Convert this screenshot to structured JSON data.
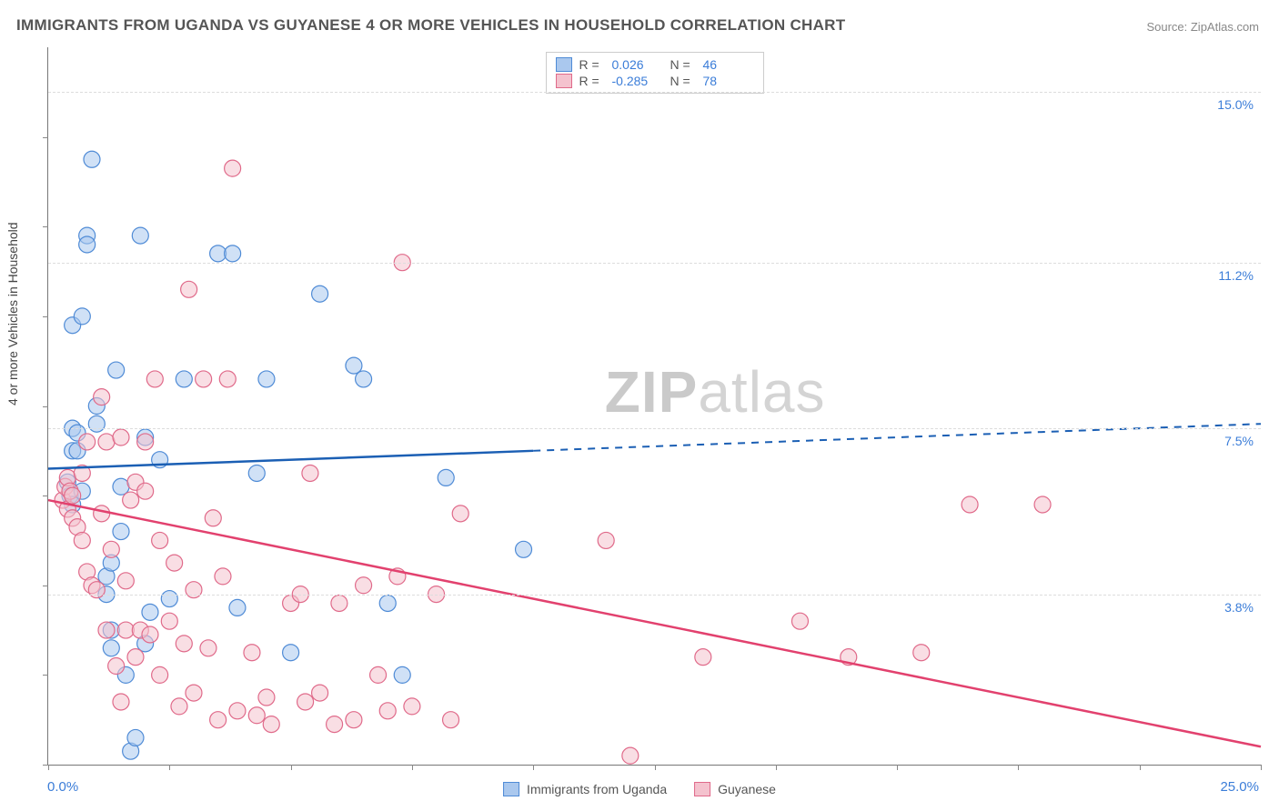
{
  "title": "IMMIGRANTS FROM UGANDA VS GUYANESE 4 OR MORE VEHICLES IN HOUSEHOLD CORRELATION CHART",
  "source": "Source: ZipAtlas.com",
  "watermark_prefix": "ZIP",
  "watermark_suffix": "atlas",
  "y_axis_title": "4 or more Vehicles in Household",
  "xlim": [
    0.0,
    25.0
  ],
  "ylim": [
    0.0,
    16.0
  ],
  "y_gridlines": [
    3.8,
    7.5,
    11.2,
    15.0
  ],
  "y_grid_labels": [
    "3.8%",
    "7.5%",
    "11.2%",
    "15.0%"
  ],
  "x_min_label": "0.0%",
  "x_max_label": "25.0%",
  "x_ticks": [
    0.0,
    2.5,
    5.0,
    7.5,
    10.0,
    12.5,
    15.0,
    17.5,
    20.0,
    22.5,
    25.0
  ],
  "y_ticks": [
    0.0,
    2.0,
    4.0,
    6.0,
    8.0,
    10.0,
    12.0,
    14.0
  ],
  "grid_color": "#dddddd",
  "axis_color": "#777777",
  "background_color": "#ffffff",
  "marker_radius": 9,
  "marker_opacity": 0.55,
  "series": [
    {
      "name": "Immigrants from Uganda",
      "fill": "#aac8ee",
      "stroke": "#4f8bd6",
      "line_color": "#1b5fb4",
      "r_label": "R =",
      "r_value": "0.026",
      "n_label": "N =",
      "n_value": "46",
      "regression": {
        "x1": 0.0,
        "y1": 6.6,
        "x2": 25.0,
        "y2": 7.6,
        "solid_until_x": 10.0
      },
      "points": [
        [
          0.4,
          6.3
        ],
        [
          0.45,
          6.0
        ],
        [
          0.5,
          5.8
        ],
        [
          0.5,
          7.5
        ],
        [
          0.5,
          7.0
        ],
        [
          0.5,
          9.8
        ],
        [
          0.6,
          7.0
        ],
        [
          0.6,
          7.4
        ],
        [
          0.7,
          6.1
        ],
        [
          0.7,
          10.0
        ],
        [
          0.8,
          11.8
        ],
        [
          0.8,
          11.6
        ],
        [
          0.9,
          13.5
        ],
        [
          1.0,
          8.0
        ],
        [
          1.0,
          7.6
        ],
        [
          1.2,
          3.8
        ],
        [
          1.2,
          4.2
        ],
        [
          1.3,
          2.6
        ],
        [
          1.3,
          3.0
        ],
        [
          1.3,
          4.5
        ],
        [
          1.4,
          8.8
        ],
        [
          1.5,
          5.2
        ],
        [
          1.5,
          6.2
        ],
        [
          1.6,
          2.0
        ],
        [
          1.7,
          0.3
        ],
        [
          1.8,
          0.6
        ],
        [
          1.9,
          11.8
        ],
        [
          2.0,
          7.3
        ],
        [
          2.0,
          2.7
        ],
        [
          2.1,
          3.4
        ],
        [
          2.3,
          6.8
        ],
        [
          2.5,
          3.7
        ],
        [
          2.8,
          8.6
        ],
        [
          3.5,
          11.4
        ],
        [
          3.8,
          11.4
        ],
        [
          3.9,
          3.5
        ],
        [
          4.3,
          6.5
        ],
        [
          4.5,
          8.6
        ],
        [
          5.0,
          2.5
        ],
        [
          5.6,
          10.5
        ],
        [
          6.3,
          8.9
        ],
        [
          6.5,
          8.6
        ],
        [
          7.0,
          3.6
        ],
        [
          7.3,
          2.0
        ],
        [
          8.2,
          6.4
        ],
        [
          9.8,
          4.8
        ]
      ]
    },
    {
      "name": "Guyanese",
      "fill": "#f4c2ce",
      "stroke": "#e06a8a",
      "line_color": "#e2416e",
      "r_label": "R =",
      "r_value": "-0.285",
      "n_label": "N =",
      "n_value": "78",
      "regression": {
        "x1": 0.0,
        "y1": 5.9,
        "x2": 25.0,
        "y2": 0.4,
        "solid_until_x": 25.0
      },
      "points": [
        [
          0.3,
          5.9
        ],
        [
          0.35,
          6.2
        ],
        [
          0.4,
          6.4
        ],
        [
          0.4,
          5.7
        ],
        [
          0.45,
          6.1
        ],
        [
          0.5,
          5.5
        ],
        [
          0.5,
          6.0
        ],
        [
          0.6,
          5.3
        ],
        [
          0.7,
          5.0
        ],
        [
          0.7,
          6.5
        ],
        [
          0.8,
          4.3
        ],
        [
          0.8,
          7.2
        ],
        [
          0.9,
          4.0
        ],
        [
          1.0,
          3.9
        ],
        [
          1.1,
          8.2
        ],
        [
          1.1,
          5.6
        ],
        [
          1.2,
          7.2
        ],
        [
          1.2,
          3.0
        ],
        [
          1.3,
          4.8
        ],
        [
          1.4,
          2.2
        ],
        [
          1.5,
          7.3
        ],
        [
          1.5,
          1.4
        ],
        [
          1.6,
          3.0
        ],
        [
          1.6,
          4.1
        ],
        [
          1.7,
          5.9
        ],
        [
          1.8,
          6.3
        ],
        [
          1.8,
          2.4
        ],
        [
          1.9,
          3.0
        ],
        [
          2.0,
          6.1
        ],
        [
          2.0,
          7.2
        ],
        [
          2.1,
          2.9
        ],
        [
          2.2,
          8.6
        ],
        [
          2.3,
          5.0
        ],
        [
          2.3,
          2.0
        ],
        [
          2.5,
          3.2
        ],
        [
          2.6,
          4.5
        ],
        [
          2.7,
          1.3
        ],
        [
          2.8,
          2.7
        ],
        [
          2.9,
          10.6
        ],
        [
          3.0,
          3.9
        ],
        [
          3.0,
          1.6
        ],
        [
          3.2,
          8.6
        ],
        [
          3.3,
          2.6
        ],
        [
          3.4,
          5.5
        ],
        [
          3.5,
          1.0
        ],
        [
          3.6,
          4.2
        ],
        [
          3.7,
          8.6
        ],
        [
          3.8,
          13.3
        ],
        [
          3.9,
          1.2
        ],
        [
          4.2,
          2.5
        ],
        [
          4.3,
          1.1
        ],
        [
          4.5,
          1.5
        ],
        [
          4.6,
          0.9
        ],
        [
          5.0,
          3.6
        ],
        [
          5.2,
          3.8
        ],
        [
          5.3,
          1.4
        ],
        [
          5.4,
          6.5
        ],
        [
          5.6,
          1.6
        ],
        [
          5.9,
          0.9
        ],
        [
          6.0,
          3.6
        ],
        [
          6.3,
          1.0
        ],
        [
          6.5,
          4.0
        ],
        [
          6.8,
          2.0
        ],
        [
          7.0,
          1.2
        ],
        [
          7.2,
          4.2
        ],
        [
          7.3,
          11.2
        ],
        [
          7.5,
          1.3
        ],
        [
          8.0,
          3.8
        ],
        [
          8.3,
          1.0
        ],
        [
          8.5,
          5.6
        ],
        [
          11.5,
          5.0
        ],
        [
          12.0,
          0.2
        ],
        [
          13.5,
          2.4
        ],
        [
          15.5,
          3.2
        ],
        [
          16.5,
          2.4
        ],
        [
          18.0,
          2.5
        ],
        [
          19.0,
          5.8
        ],
        [
          20.5,
          5.8
        ]
      ]
    }
  ],
  "legend_items": [
    "Immigrants from Uganda",
    "Guyanese"
  ]
}
